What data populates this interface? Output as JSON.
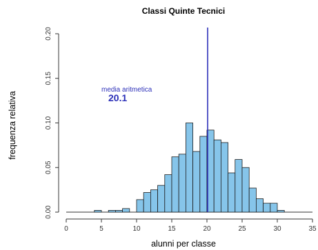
{
  "chart_data": {
    "type": "bar",
    "title": "Classi Quinte Tecnici",
    "xlabel": "alunni per classe",
    "ylabel": "frequenza relativa",
    "xlim": [
      0,
      35
    ],
    "ylim": [
      0,
      0.2
    ],
    "x_ticks": [
      "0",
      "5",
      "10",
      "15",
      "20",
      "25",
      "30",
      "35"
    ],
    "y_ticks": [
      "0.00",
      "0.05",
      "0.10",
      "0.15",
      "0.20"
    ],
    "bins": [
      {
        "x0": 4,
        "x1": 5,
        "value": 0.002
      },
      {
        "x0": 6,
        "x1": 7,
        "value": 0.002
      },
      {
        "x0": 7,
        "x1": 8,
        "value": 0.002
      },
      {
        "x0": 8,
        "x1": 9,
        "value": 0.004
      },
      {
        "x0": 10,
        "x1": 11,
        "value": 0.014
      },
      {
        "x0": 11,
        "x1": 12,
        "value": 0.022
      },
      {
        "x0": 12,
        "x1": 13,
        "value": 0.025
      },
      {
        "x0": 13,
        "x1": 14,
        "value": 0.03
      },
      {
        "x0": 14,
        "x1": 15,
        "value": 0.042
      },
      {
        "x0": 15,
        "x1": 16,
        "value": 0.062
      },
      {
        "x0": 16,
        "x1": 17,
        "value": 0.065
      },
      {
        "x0": 17,
        "x1": 18,
        "value": 0.1
      },
      {
        "x0": 18,
        "x1": 19,
        "value": 0.068
      },
      {
        "x0": 19,
        "x1": 20,
        "value": 0.085
      },
      {
        "x0": 20,
        "x1": 21,
        "value": 0.092
      },
      {
        "x0": 21,
        "x1": 22,
        "value": 0.081
      },
      {
        "x0": 22,
        "x1": 23,
        "value": 0.078
      },
      {
        "x0": 23,
        "x1": 24,
        "value": 0.044
      },
      {
        "x0": 24,
        "x1": 25,
        "value": 0.059
      },
      {
        "x0": 25,
        "x1": 26,
        "value": 0.05
      },
      {
        "x0": 26,
        "x1": 27,
        "value": 0.027
      },
      {
        "x0": 27,
        "x1": 28,
        "value": 0.015
      },
      {
        "x0": 28,
        "x1": 29,
        "value": 0.01
      },
      {
        "x0": 29,
        "x1": 30,
        "value": 0.01
      },
      {
        "x0": 30,
        "x1": 31,
        "value": 0.002
      }
    ],
    "reference_line": {
      "x": 20.1,
      "label": "media aritmetica",
      "value_label": "20.1",
      "color": "#2b2fb8"
    },
    "bar_color": "#86c5ea",
    "grid": false,
    "legend": "none"
  }
}
